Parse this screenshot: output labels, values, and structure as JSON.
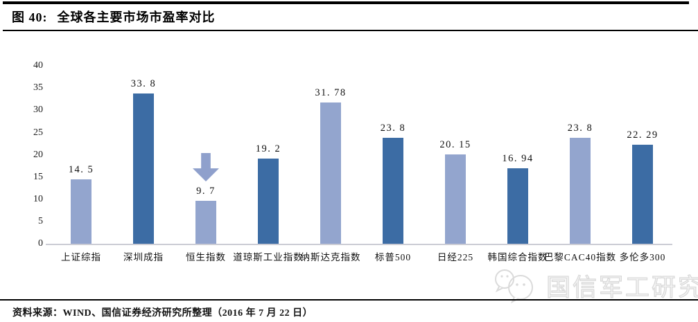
{
  "header": {
    "figure_label": "图 40:",
    "title": "全球各主要市场市盈率对比"
  },
  "chart_data": {
    "type": "bar",
    "title": "全球各主要市场市盈率对比",
    "categories": [
      "上证综指",
      "深圳成指",
      "恒生指数",
      "道琼斯工业指数",
      "纳斯达克指数",
      "标普500",
      "日经225",
      "韩国综合指数",
      "巴黎CAC40指数",
      "多伦多300"
    ],
    "values": [
      14.5,
      33.8,
      9.7,
      19.2,
      31.78,
      23.8,
      20.15,
      16.94,
      23.8,
      22.29
    ],
    "value_labels": [
      "14. 5",
      "33. 8",
      "9. 7",
      "19. 2",
      "31. 78",
      "23. 8",
      "20. 15",
      "16. 94",
      "23. 8",
      "22. 29"
    ],
    "bar_styles": [
      "light",
      "dark",
      "light",
      "dark",
      "light",
      "dark",
      "light",
      "dark",
      "light",
      "dark"
    ],
    "colors": {
      "light": "#93a5ce",
      "dark": "#3c6ca4",
      "arrow": "#8fa0cc"
    },
    "yticks": [
      0,
      5,
      10,
      15,
      20,
      25,
      30,
      35,
      40
    ],
    "ylim": [
      0,
      40
    ],
    "xlabel": "",
    "ylabel": "",
    "grid": "off",
    "legend": "none",
    "annotation": {
      "type": "down-arrow",
      "category": "恒生指数",
      "category_index": 2
    }
  },
  "watermark": {
    "text": "国信军工研究",
    "icon": "wechat-logo"
  },
  "footer": {
    "source_label": "资料来源：",
    "source_text": "WIND、国信证券经济研究所整理（2016 年 7 月 22 日）"
  }
}
